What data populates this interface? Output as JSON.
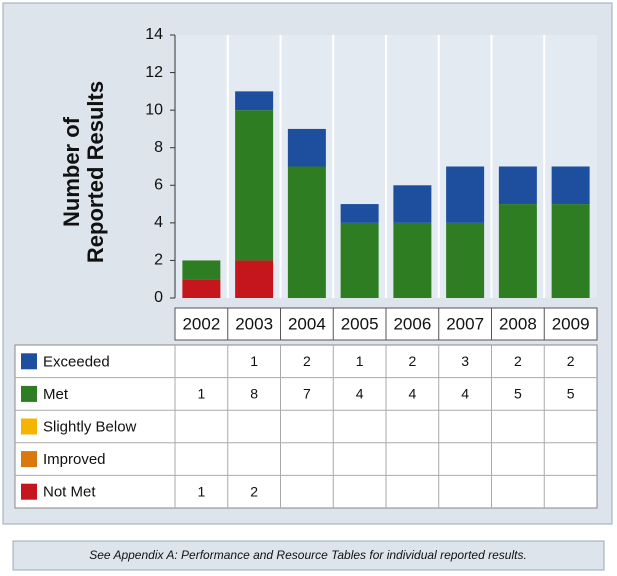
{
  "chart_data": {
    "type": "bar",
    "stacked": true,
    "y_label": [
      "Number of",
      "Reported Results"
    ],
    "categories": [
      "2002",
      "2003",
      "2004",
      "2005",
      "2006",
      "2007",
      "2008",
      "2009"
    ],
    "series": [
      {
        "name": "Exceeded",
        "color": "#1d4f9e",
        "values": [
          null,
          1,
          2,
          1,
          2,
          3,
          2,
          2
        ]
      },
      {
        "name": "Met",
        "color": "#2f7d22",
        "values": [
          1,
          8,
          7,
          4,
          4,
          4,
          5,
          5
        ]
      },
      {
        "name": "Slightly Below",
        "color": "#f4b400",
        "values": [
          null,
          null,
          null,
          null,
          null,
          null,
          null,
          null
        ]
      },
      {
        "name": "Improved",
        "color": "#d9780f",
        "values": [
          null,
          null,
          null,
          null,
          null,
          null,
          null,
          null
        ]
      },
      {
        "name": "Not Met",
        "color": "#c4161c",
        "values": [
          1,
          2,
          null,
          null,
          null,
          null,
          null,
          null
        ]
      }
    ],
    "ylim": [
      0,
      14
    ],
    "yticks": [
      0,
      2,
      4,
      6,
      8,
      10,
      12,
      14
    ],
    "grid": false,
    "footnote": "See Appendix A: Performance and Resource Tables for individual reported results."
  }
}
